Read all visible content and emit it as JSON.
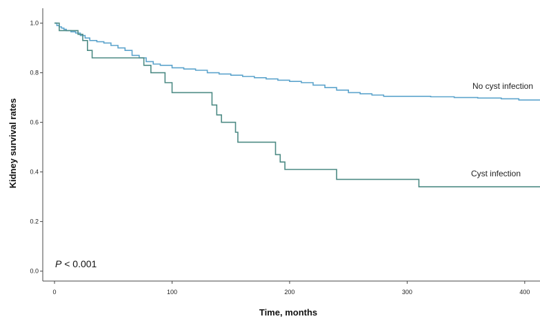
{
  "chart_data": {
    "type": "line",
    "title": "",
    "xlabel": "Time, months",
    "ylabel": "Kidney survival rates",
    "xlim": [
      -10,
      413
    ],
    "ylim": [
      -0.04,
      1.06
    ],
    "x_ticks": [
      {
        "value": 0,
        "label": "0"
      },
      {
        "value": 100,
        "label": "100"
      },
      {
        "value": 200,
        "label": "200"
      },
      {
        "value": 300,
        "label": "300"
      },
      {
        "value": 400,
        "label": "400"
      }
    ],
    "y_ticks": [
      {
        "value": 0.0,
        "label": "0.0"
      },
      {
        "value": 0.2,
        "label": "0.2"
      },
      {
        "value": 0.4,
        "label": "0.4"
      },
      {
        "value": 0.6,
        "label": "0.6"
      },
      {
        "value": 0.8,
        "label": "0.8"
      },
      {
        "value": 1.0,
        "label": "1.0"
      }
    ],
    "grid": false,
    "annotation": {
      "p_symbol": "P",
      "p_rest": " < 0.001"
    },
    "series": [
      {
        "name": "No cyst infection",
        "color": "#5ba3cc",
        "step": true,
        "points": [
          [
            0,
            1.0
          ],
          [
            2,
            0.99
          ],
          [
            4,
            0.985
          ],
          [
            6,
            0.98
          ],
          [
            8,
            0.975
          ],
          [
            10,
            0.97
          ],
          [
            14,
            0.965
          ],
          [
            18,
            0.96
          ],
          [
            22,
            0.95
          ],
          [
            26,
            0.94
          ],
          [
            30,
            0.93
          ],
          [
            36,
            0.925
          ],
          [
            42,
            0.92
          ],
          [
            48,
            0.91
          ],
          [
            54,
            0.9
          ],
          [
            60,
            0.89
          ],
          [
            66,
            0.87
          ],
          [
            72,
            0.86
          ],
          [
            78,
            0.845
          ],
          [
            84,
            0.835
          ],
          [
            90,
            0.83
          ],
          [
            100,
            0.82
          ],
          [
            110,
            0.815
          ],
          [
            120,
            0.81
          ],
          [
            130,
            0.8
          ],
          [
            140,
            0.795
          ],
          [
            150,
            0.79
          ],
          [
            160,
            0.785
          ],
          [
            170,
            0.78
          ],
          [
            180,
            0.775
          ],
          [
            190,
            0.77
          ],
          [
            200,
            0.765
          ],
          [
            210,
            0.76
          ],
          [
            220,
            0.75
          ],
          [
            230,
            0.74
          ],
          [
            240,
            0.73
          ],
          [
            250,
            0.72
          ],
          [
            260,
            0.715
          ],
          [
            270,
            0.71
          ],
          [
            280,
            0.705
          ],
          [
            300,
            0.705
          ],
          [
            320,
            0.703
          ],
          [
            340,
            0.7
          ],
          [
            360,
            0.698
          ],
          [
            380,
            0.695
          ],
          [
            395,
            0.69
          ],
          [
            413,
            0.69
          ]
        ]
      },
      {
        "name": "Cyst infection",
        "color": "#4c8a84",
        "step": true,
        "points": [
          [
            0,
            1.0
          ],
          [
            4,
            0.97
          ],
          [
            20,
            0.955
          ],
          [
            24,
            0.93
          ],
          [
            28,
            0.89
          ],
          [
            32,
            0.86
          ],
          [
            70,
            0.86
          ],
          [
            76,
            0.83
          ],
          [
            82,
            0.8
          ],
          [
            94,
            0.76
          ],
          [
            100,
            0.72
          ],
          [
            130,
            0.72
          ],
          [
            134,
            0.67
          ],
          [
            138,
            0.63
          ],
          [
            142,
            0.6
          ],
          [
            154,
            0.56
          ],
          [
            156,
            0.52
          ],
          [
            186,
            0.52
          ],
          [
            188,
            0.47
          ],
          [
            192,
            0.44
          ],
          [
            196,
            0.41
          ],
          [
            238,
            0.41
          ],
          [
            240,
            0.37
          ],
          [
            308,
            0.37
          ],
          [
            310,
            0.34
          ],
          [
            413,
            0.34
          ]
        ]
      }
    ]
  }
}
